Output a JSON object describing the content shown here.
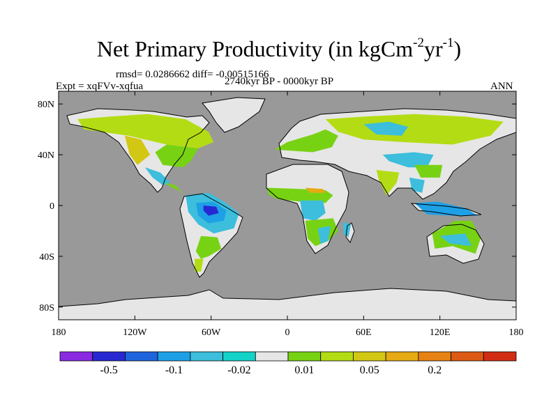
{
  "chart_data": {
    "type": "heatmap",
    "title": "Net Primary Productivity (in kgCm",
    "title_unit_exp1": "-2",
    "title_mid": "yr",
    "title_unit_exp2": "-1",
    "title_close": ")",
    "subtitle_stats": "rmsd= 0.0286662 diff= -0.00515166",
    "subtitle_period": "2740kyr BP - 0000kyr BP",
    "left_label": "Expt = xqFVv-xqfua",
    "right_label": "ANN",
    "x_ticks": [
      "180",
      "120W",
      "60W",
      "0",
      "60E",
      "120E",
      "180"
    ],
    "x_tick_lon": [
      -180,
      -120,
      -60,
      0,
      60,
      120,
      180
    ],
    "y_ticks": [
      "80N",
      "40N",
      "0",
      "40S",
      "80S"
    ],
    "y_tick_lat": [
      80,
      40,
      0,
      -40,
      -80
    ],
    "xlim": [
      -180,
      180
    ],
    "ylim": [
      -90,
      90
    ],
    "colorbar": {
      "colors": [
        "#8a2be2",
        "#2828d2",
        "#1e64dc",
        "#1ea0e6",
        "#3cbedc",
        "#14d2c8",
        "#e6e6e6",
        "#78d214",
        "#b4dc14",
        "#d2c814",
        "#e6aa14",
        "#e68214",
        "#dc5a14",
        "#d22d14"
      ],
      "labels": [
        "-0.5",
        "-0.1",
        "-0.02",
        "0.01",
        "0.05",
        "0.2"
      ],
      "label_after_box": [
        1,
        3,
        5,
        7,
        9,
        11
      ]
    },
    "ocean_color": "#999999",
    "land_neutral_color": "#e6e6e6",
    "regions": [
      {
        "name": "north-america-boreal",
        "color": "#b4dc14",
        "lonlat": [
          [
            -165,
            68
          ],
          [
            -140,
            70
          ],
          [
            -110,
            72
          ],
          [
            -80,
            68
          ],
          [
            -62,
            58
          ],
          [
            -58,
            50
          ],
          [
            -70,
            45
          ],
          [
            -95,
            48
          ],
          [
            -125,
            55
          ],
          [
            -160,
            60
          ]
        ]
      },
      {
        "name": "north-america-west",
        "color": "#d2c814",
        "lonlat": [
          [
            -128,
            55
          ],
          [
            -115,
            52
          ],
          [
            -108,
            40
          ],
          [
            -118,
            32
          ],
          [
            -124,
            40
          ]
        ]
      },
      {
        "name": "north-america-east",
        "color": "#78d214",
        "lonlat": [
          [
            -95,
            48
          ],
          [
            -70,
            45
          ],
          [
            -76,
            35
          ],
          [
            -82,
            30
          ],
          [
            -98,
            32
          ],
          [
            -104,
            42
          ]
        ]
      },
      {
        "name": "mexico-teal",
        "color": "#3cbedc",
        "lonlat": [
          [
            -112,
            30
          ],
          [
            -100,
            26
          ],
          [
            -92,
            18
          ],
          [
            -98,
            16
          ],
          [
            -106,
            22
          ]
        ]
      },
      {
        "name": "central-america",
        "color": "#78d214",
        "lonlat": [
          [
            -97,
            18
          ],
          [
            -88,
            16
          ],
          [
            -82,
            9
          ],
          [
            -86,
            12
          ],
          [
            -92,
            15
          ]
        ]
      },
      {
        "name": "amazon-teal",
        "color": "#3cbedc",
        "lonlat": [
          [
            -80,
            8
          ],
          [
            -62,
            10
          ],
          [
            -50,
            3
          ],
          [
            -38,
            -6
          ],
          [
            -42,
            -18
          ],
          [
            -58,
            -22
          ],
          [
            -70,
            -15
          ],
          [
            -78,
            -5
          ]
        ]
      },
      {
        "name": "amazon-blue",
        "color": "#1ea0e6",
        "lonlat": [
          [
            -72,
            2
          ],
          [
            -58,
            3
          ],
          [
            -48,
            -4
          ],
          [
            -50,
            -12
          ],
          [
            -62,
            -14
          ],
          [
            -70,
            -8
          ]
        ]
      },
      {
        "name": "amazon-core",
        "color": "#2828d2",
        "lonlat": [
          [
            -66,
            0
          ],
          [
            -56,
            -1
          ],
          [
            -54,
            -6
          ],
          [
            -62,
            -8
          ],
          [
            -66,
            -4
          ]
        ]
      },
      {
        "name": "south-america-south",
        "color": "#78d214",
        "lonlat": [
          [
            -68,
            -24
          ],
          [
            -55,
            -25
          ],
          [
            -52,
            -34
          ],
          [
            -62,
            -40
          ],
          [
            -68,
            -42
          ],
          [
            -72,
            -36
          ]
        ]
      },
      {
        "name": "patagonia",
        "color": "#b4dc14",
        "lonlat": [
          [
            -73,
            -42
          ],
          [
            -66,
            -42
          ],
          [
            -68,
            -52
          ],
          [
            -73,
            -52
          ]
        ]
      },
      {
        "name": "africa-west-green",
        "color": "#78d214",
        "lonlat": [
          [
            -16,
            14
          ],
          [
            10,
            13
          ],
          [
            30,
            12
          ],
          [
            36,
            8
          ],
          [
            30,
            2
          ],
          [
            10,
            3
          ],
          [
            -8,
            5
          ],
          [
            -15,
            9
          ]
        ]
      },
      {
        "name": "sahel-orange",
        "color": "#e6aa14",
        "lonlat": [
          [
            14,
            14
          ],
          [
            28,
            13
          ],
          [
            30,
            10
          ],
          [
            18,
            10
          ]
        ]
      },
      {
        "name": "congo-teal",
        "color": "#3cbedc",
        "lonlat": [
          [
            10,
            4
          ],
          [
            28,
            4
          ],
          [
            30,
            -6
          ],
          [
            22,
            -12
          ],
          [
            12,
            -10
          ]
        ]
      },
      {
        "name": "africa-south-green",
        "color": "#78d214",
        "lonlat": [
          [
            14,
            -12
          ],
          [
            36,
            -10
          ],
          [
            40,
            -20
          ],
          [
            32,
            -28
          ],
          [
            22,
            -32
          ],
          [
            16,
            -26
          ]
        ]
      },
      {
        "name": "africa-southeast-teal",
        "color": "#3cbedc",
        "lonlat": [
          [
            24,
            -18
          ],
          [
            34,
            -16
          ],
          [
            32,
            -28
          ],
          [
            26,
            -30
          ]
        ]
      },
      {
        "name": "madagascar",
        "color": "#3cbedc",
        "lonlat": [
          [
            44,
            -13
          ],
          [
            50,
            -15
          ],
          [
            48,
            -25
          ],
          [
            44,
            -22
          ]
        ]
      },
      {
        "name": "europe-green",
        "color": "#78d214",
        "lonlat": [
          [
            -10,
            44
          ],
          [
            0,
            50
          ],
          [
            20,
            56
          ],
          [
            30,
            60
          ],
          [
            40,
            55
          ],
          [
            35,
            46
          ],
          [
            20,
            42
          ],
          [
            5,
            43
          ]
        ]
      },
      {
        "name": "siberia-green",
        "color": "#b4dc14",
        "lonlat": [
          [
            30,
            68
          ],
          [
            60,
            70
          ],
          [
            100,
            72
          ],
          [
            140,
            70
          ],
          [
            170,
            66
          ],
          [
            160,
            55
          ],
          [
            130,
            48
          ],
          [
            90,
            50
          ],
          [
            60,
            52
          ],
          [
            40,
            58
          ]
        ]
      },
      {
        "name": "siberia-teal",
        "color": "#3cbedc",
        "lonlat": [
          [
            60,
            64
          ],
          [
            80,
            66
          ],
          [
            95,
            62
          ],
          [
            90,
            55
          ],
          [
            70,
            56
          ]
        ]
      },
      {
        "name": "east-asia-teal",
        "color": "#3cbedc",
        "lonlat": [
          [
            75,
            40
          ],
          [
            100,
            42
          ],
          [
            115,
            40
          ],
          [
            110,
            30
          ],
          [
            95,
            30
          ],
          [
            80,
            35
          ]
        ]
      },
      {
        "name": "east-asia-green",
        "color": "#78d214",
        "lonlat": [
          [
            100,
            32
          ],
          [
            122,
            32
          ],
          [
            120,
            22
          ],
          [
            105,
            22
          ]
        ]
      },
      {
        "name": "india-green",
        "color": "#b4dc14",
        "lonlat": [
          [
            70,
            28
          ],
          [
            88,
            26
          ],
          [
            86,
            18
          ],
          [
            78,
            8
          ],
          [
            72,
            20
          ]
        ]
      },
      {
        "name": "indochina-teal",
        "color": "#3cbedc",
        "lonlat": [
          [
            96,
            22
          ],
          [
            108,
            20
          ],
          [
            106,
            10
          ],
          [
            98,
            12
          ]
        ]
      },
      {
        "name": "indonesia-teal",
        "color": "#1ea0e6",
        "lonlat": [
          [
            100,
            2
          ],
          [
            118,
            3
          ],
          [
            140,
            -2
          ],
          [
            150,
            -8
          ],
          [
            130,
            -8
          ],
          [
            110,
            -7
          ]
        ]
      },
      {
        "name": "australia-green",
        "color": "#78d214",
        "lonlat": [
          [
            114,
            -22
          ],
          [
            132,
            -12
          ],
          [
            145,
            -12
          ],
          [
            152,
            -26
          ],
          [
            148,
            -38
          ],
          [
            130,
            -32
          ],
          [
            116,
            -34
          ]
        ]
      },
      {
        "name": "australia-teal",
        "color": "#3cbedc",
        "lonlat": [
          [
            120,
            -24
          ],
          [
            140,
            -22
          ],
          [
            145,
            -32
          ],
          [
            128,
            -30
          ]
        ]
      }
    ]
  }
}
